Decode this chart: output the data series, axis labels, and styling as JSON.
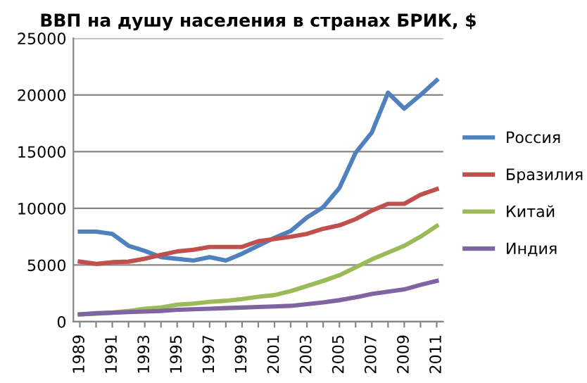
{
  "chart_data": {
    "type": "line",
    "title": "ВВП на душу населения в странах БРИК, $",
    "categories": [
      "1989",
      null,
      "1991",
      null,
      "1993",
      null,
      "1995",
      null,
      "1997",
      null,
      "1999",
      null,
      "2001",
      null,
      "2003",
      null,
      "2005",
      null,
      "2007",
      null,
      "2009",
      null,
      "2011"
    ],
    "series": [
      {
        "name": "Россия",
        "color": "#4f81bd",
        "values": [
          7950,
          7950,
          7750,
          6700,
          6250,
          5700,
          5550,
          5400,
          5700,
          5400,
          6000,
          6700,
          7400,
          8000,
          9200,
          10100,
          11800,
          14900,
          16700,
          20200,
          18800,
          20000,
          21300
        ]
      },
      {
        "name": "Бразилия",
        "color": "#c0504d",
        "values": [
          5300,
          5100,
          5250,
          5300,
          5550,
          5900,
          6200,
          6350,
          6600,
          6600,
          6600,
          7100,
          7300,
          7500,
          7750,
          8200,
          8500,
          9050,
          9800,
          10400,
          10400,
          11200,
          11700
        ]
      },
      {
        "name": "Китай",
        "color": "#9bbb59",
        "values": [
          650,
          700,
          800,
          950,
          1150,
          1250,
          1500,
          1600,
          1750,
          1850,
          2000,
          2200,
          2350,
          2700,
          3150,
          3600,
          4100,
          4800,
          5500,
          6100,
          6700,
          7500,
          8450
        ]
      },
      {
        "name": "Индия",
        "color": "#8064a2",
        "values": [
          650,
          750,
          800,
          850,
          900,
          950,
          1050,
          1100,
          1150,
          1200,
          1250,
          1300,
          1350,
          1400,
          1550,
          1700,
          1900,
          2150,
          2450,
          2650,
          2850,
          3250,
          3600
        ]
      }
    ],
    "ylim": [
      0,
      25000
    ],
    "yticks": [
      0,
      5000,
      10000,
      15000,
      20000,
      25000
    ],
    "grid": "y",
    "legend": "right",
    "marker": "none",
    "line_style": "solid"
  }
}
